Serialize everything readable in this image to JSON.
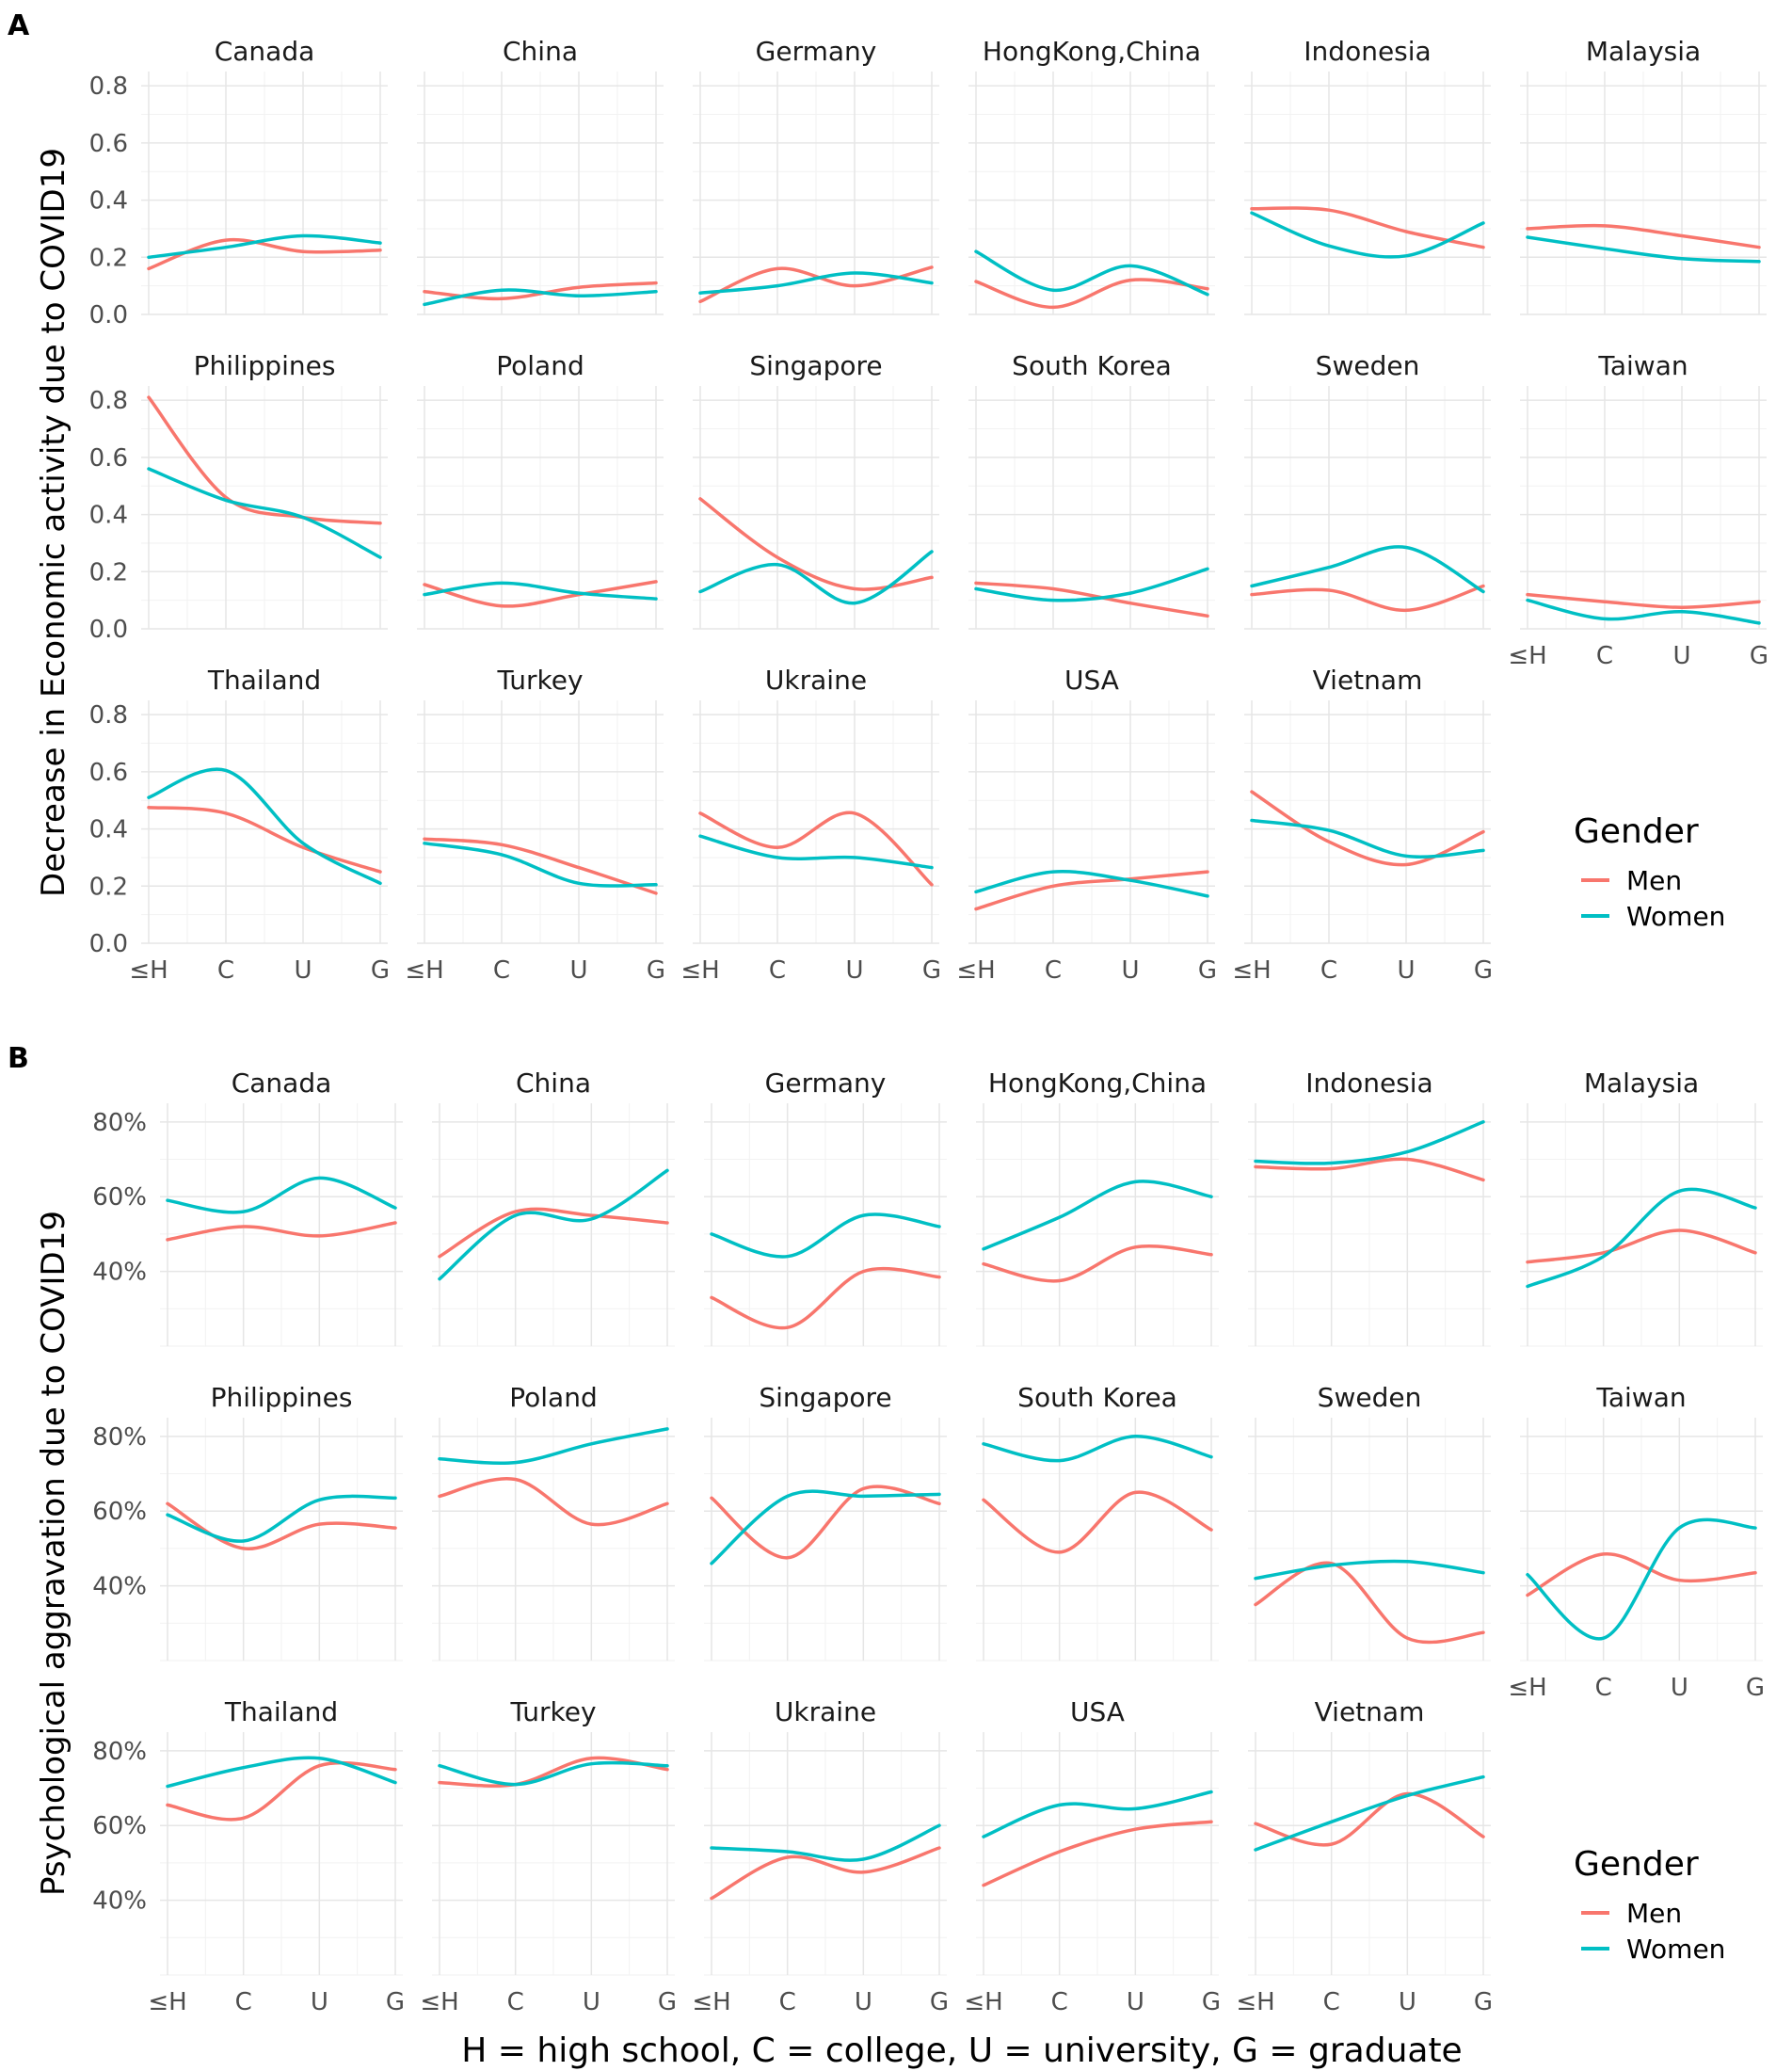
{
  "panel_labels": [
    "A",
    "B"
  ],
  "legend": {
    "title": "Gender",
    "items": [
      {
        "label": "Men",
        "color": "#F8766D"
      },
      {
        "label": "Women",
        "color": "#00BFC4"
      }
    ]
  },
  "x_caption": "H = high school, C = college, U = university, G = graduate",
  "chart_data": [
    {
      "type": "line",
      "ylabel": "Decrease in Economic activity due to COVID19",
      "categories": [
        "≤H",
        "C",
        "U",
        "G"
      ],
      "ylim": [
        0.0,
        0.85
      ],
      "yticks": [
        0.0,
        0.2,
        0.4,
        0.6,
        0.8
      ],
      "ytick_labels": [
        "0.0",
        "0.2",
        "0.4",
        "0.6",
        "0.8"
      ],
      "facets": [
        {
          "name": "Canada",
          "men": [
            0.16,
            0.26,
            0.22,
            0.225
          ],
          "women": [
            0.2,
            0.235,
            0.275,
            0.25
          ]
        },
        {
          "name": "China",
          "men": [
            0.08,
            0.055,
            0.095,
            0.11
          ],
          "women": [
            0.035,
            0.085,
            0.065,
            0.08
          ]
        },
        {
          "name": "Germany",
          "men": [
            0.045,
            0.16,
            0.1,
            0.165
          ],
          "women": [
            0.075,
            0.1,
            0.145,
            0.11
          ]
        },
        {
          "name": "HongKong,China",
          "men": [
            0.115,
            0.025,
            0.12,
            0.09
          ],
          "women": [
            0.22,
            0.085,
            0.17,
            0.07
          ]
        },
        {
          "name": "Indonesia",
          "men": [
            0.37,
            0.365,
            0.29,
            0.235
          ],
          "women": [
            0.355,
            0.24,
            0.205,
            0.32
          ]
        },
        {
          "name": "Malaysia",
          "men": [
            0.3,
            0.31,
            0.275,
            0.235
          ],
          "women": [
            0.27,
            0.23,
            0.195,
            0.185
          ]
        },
        {
          "name": "Philippines",
          "men": [
            0.81,
            0.46,
            0.39,
            0.37
          ],
          "women": [
            0.56,
            0.45,
            0.39,
            0.25
          ]
        },
        {
          "name": "Poland",
          "men": [
            0.155,
            0.08,
            0.12,
            0.165
          ],
          "women": [
            0.12,
            0.16,
            0.125,
            0.105
          ]
        },
        {
          "name": "Singapore",
          "men": [
            0.455,
            0.25,
            0.14,
            0.18
          ],
          "women": [
            0.13,
            0.225,
            0.09,
            0.27
          ]
        },
        {
          "name": "South Korea",
          "men": [
            0.16,
            0.14,
            0.09,
            0.045
          ],
          "women": [
            0.14,
            0.1,
            0.125,
            0.21
          ]
        },
        {
          "name": "Sweden",
          "men": [
            0.12,
            0.135,
            0.065,
            0.15
          ],
          "women": [
            0.15,
            0.215,
            0.285,
            0.13
          ]
        },
        {
          "name": "Taiwan",
          "men": [
            0.12,
            0.095,
            0.075,
            0.095
          ],
          "women": [
            0.1,
            0.035,
            0.06,
            0.02
          ]
        },
        {
          "name": "Thailand",
          "men": [
            0.475,
            0.455,
            0.335,
            0.25
          ],
          "women": [
            0.51,
            0.605,
            0.35,
            0.21
          ]
        },
        {
          "name": "Turkey",
          "men": [
            0.365,
            0.345,
            0.265,
            0.175
          ],
          "women": [
            0.35,
            0.31,
            0.21,
            0.205
          ]
        },
        {
          "name": "Ukraine",
          "men": [
            0.455,
            0.335,
            0.455,
            0.205
          ],
          "women": [
            0.375,
            0.3,
            0.3,
            0.265
          ]
        },
        {
          "name": "USA",
          "men": [
            0.12,
            0.2,
            0.225,
            0.25
          ],
          "women": [
            0.18,
            0.25,
            0.22,
            0.165
          ]
        },
        {
          "name": "Vietnam",
          "men": [
            0.53,
            0.355,
            0.275,
            0.39
          ],
          "women": [
            0.43,
            0.395,
            0.305,
            0.325
          ]
        }
      ]
    },
    {
      "type": "line",
      "ylabel": "Psychological aggravation due to COVID19",
      "categories": [
        "≤H",
        "C",
        "U",
        "G"
      ],
      "ylim": [
        20,
        85
      ],
      "yticks": [
        40,
        60,
        80
      ],
      "ytick_labels": [
        "40%",
        "60%",
        "80%"
      ],
      "facets": [
        {
          "name": "Canada",
          "men": [
            48.5,
            52,
            49.5,
            53
          ],
          "women": [
            59,
            56,
            65,
            57
          ]
        },
        {
          "name": "China",
          "men": [
            44,
            56,
            55,
            53
          ],
          "women": [
            38,
            55,
            54,
            67
          ]
        },
        {
          "name": "Germany",
          "men": [
            33,
            25,
            40,
            38.5
          ],
          "women": [
            50,
            44,
            55,
            52
          ]
        },
        {
          "name": "HongKong,China",
          "men": [
            42,
            37.5,
            46.5,
            44.5
          ],
          "women": [
            46,
            54.5,
            64,
            60
          ]
        },
        {
          "name": "Indonesia",
          "men": [
            68,
            67.5,
            70,
            64.5
          ],
          "women": [
            69.5,
            69,
            72,
            80
          ]
        },
        {
          "name": "Malaysia",
          "men": [
            42.5,
            45,
            51,
            45
          ],
          "women": [
            36,
            44,
            61.5,
            57
          ]
        },
        {
          "name": "Philippines",
          "men": [
            62,
            50,
            56.5,
            55.5
          ],
          "women": [
            59,
            52,
            63,
            63.5
          ]
        },
        {
          "name": "Poland",
          "men": [
            64,
            68.5,
            56.5,
            62
          ],
          "women": [
            74,
            73,
            78,
            82
          ]
        },
        {
          "name": "Singapore",
          "men": [
            63.5,
            47.5,
            66,
            62
          ],
          "women": [
            46,
            64,
            64,
            64.5
          ]
        },
        {
          "name": "South Korea",
          "men": [
            63,
            49,
            65,
            55
          ],
          "women": [
            78,
            73.5,
            80,
            74.5
          ]
        },
        {
          "name": "Sweden",
          "men": [
            35,
            46,
            26,
            27.5
          ],
          "women": [
            42,
            45.5,
            46.5,
            43.5
          ]
        },
        {
          "name": "Taiwan",
          "men": [
            37.5,
            48.5,
            41.5,
            43.5
          ],
          "women": [
            43,
            26,
            55.5,
            55.5
          ]
        },
        {
          "name": "Thailand",
          "men": [
            65.5,
            62,
            76,
            75
          ],
          "women": [
            70.5,
            75.5,
            78,
            71.5
          ]
        },
        {
          "name": "Turkey",
          "men": [
            71.5,
            71,
            78,
            75
          ],
          "women": [
            76,
            71,
            76.5,
            76
          ]
        },
        {
          "name": "Ukraine",
          "men": [
            40.5,
            51.5,
            47.5,
            54
          ],
          "women": [
            54,
            53,
            51,
            60
          ]
        },
        {
          "name": "USA",
          "men": [
            44,
            53,
            59,
            61
          ],
          "women": [
            57,
            65.5,
            64.5,
            69
          ]
        },
        {
          "name": "Vietnam",
          "men": [
            60.5,
            55,
            68.5,
            57
          ],
          "women": [
            53.5,
            61,
            68,
            73
          ]
        }
      ]
    }
  ]
}
